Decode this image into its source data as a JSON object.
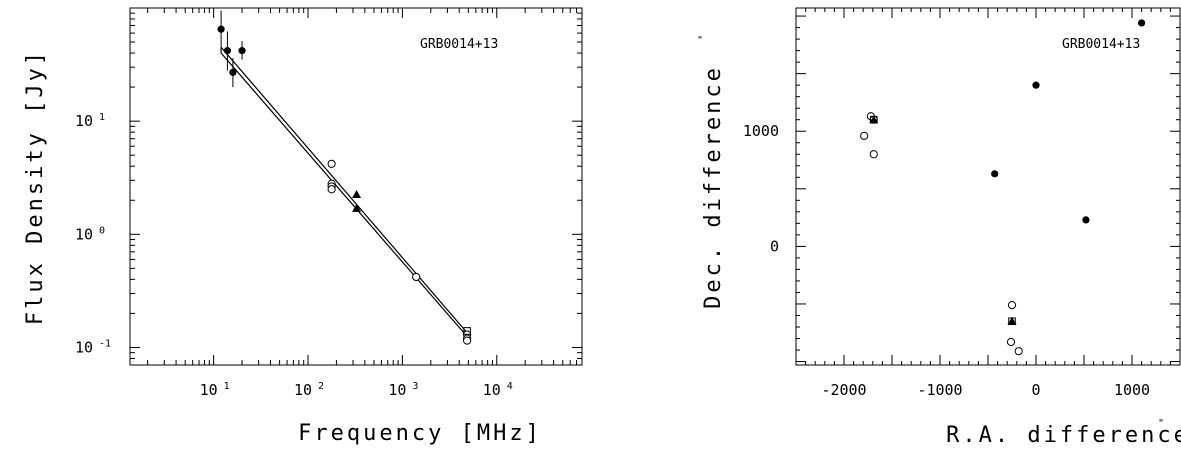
{
  "chart_data": [
    {
      "type": "scatter",
      "annotation": "GRB0014+13",
      "xlabel": "Frequency [MHz]",
      "ylabel": "Flux Density [Jy]",
      "xscale": "log",
      "yscale": "log",
      "xlim": [
        1.3,
        80000
      ],
      "ylim": [
        0.07,
        100
      ],
      "xticks": [
        {
          "value": 10,
          "base": "10",
          "exp": "1"
        },
        {
          "value": 100,
          "base": "10",
          "exp": "2"
        },
        {
          "value": 1000,
          "base": "10",
          "exp": "3"
        },
        {
          "value": 10000,
          "base": "10",
          "exp": "4"
        }
      ],
      "yticks": [
        {
          "value": 0.1,
          "base": "10",
          "exp": "-1"
        },
        {
          "value": 1,
          "base": "10",
          "exp": "0"
        },
        {
          "value": 10,
          "base": "10",
          "exp": "1"
        }
      ],
      "series": [
        {
          "marker": "filled-circle",
          "points": [
            {
              "x": 12,
              "y": 65,
              "err": [
                45,
                95
              ]
            },
            {
              "x": 14,
              "y": 42,
              "err": [
                28,
                62
              ]
            },
            {
              "x": 16,
              "y": 27,
              "err": [
                20,
                36
              ]
            },
            {
              "x": 20,
              "y": 42,
              "err": [
                35,
                51
              ]
            }
          ]
        },
        {
          "marker": "open-circle",
          "points": [
            {
              "x": 178,
              "y": 4.2
            },
            {
              "x": 178,
              "y": 2.8
            },
            {
              "x": 178,
              "y": 2.65
            },
            {
              "x": 178,
              "y": 2.5
            },
            {
              "x": 1400,
              "y": 0.42
            },
            {
              "x": 4850,
              "y": 0.13
            },
            {
              "x": 4850,
              "y": 0.12
            },
            {
              "x": 4850,
              "y": 0.115
            }
          ]
        },
        {
          "marker": "filled-triangle",
          "points": [
            {
              "x": 327,
              "y": 2.25
            },
            {
              "x": 327,
              "y": 1.7
            }
          ]
        },
        {
          "marker": "open-square",
          "points": [
            {
              "x": 4850,
              "y": 0.14
            }
          ]
        }
      ],
      "fit_lines": [
        {
          "from": [
            12,
            45
          ],
          "to": [
            4850,
            0.135
          ]
        },
        {
          "from": [
            12,
            40
          ],
          "to": [
            4850,
            0.125
          ]
        }
      ],
      "fit_step": {
        "x": 12,
        "y": [
          45,
          40
        ]
      }
    },
    {
      "type": "scatter",
      "annotation": "GRB0014+13",
      "xlabel": "R.A. difference",
      "ylabel": "Dec. difference",
      "unit_mark": "\"",
      "xlim": [
        -2500,
        1500
      ],
      "ylim": [
        -1030,
        2070
      ],
      "xticks": [
        -2000,
        -1000,
        0,
        1000
      ],
      "yticks": [
        0,
        1000
      ],
      "series": [
        {
          "marker": "filled-circle",
          "points": [
            {
              "x": 1100,
              "y": 1940
            },
            {
              "x": 0,
              "y": 1400
            },
            {
              "x": -430,
              "y": 630
            },
            {
              "x": 520,
              "y": 230
            }
          ]
        },
        {
          "marker": "open-circle",
          "points": [
            {
              "x": -1720,
              "y": 1130
            },
            {
              "x": -1690,
              "y": 1100
            },
            {
              "x": -1790,
              "y": 960
            },
            {
              "x": -1690,
              "y": 800
            },
            {
              "x": -250,
              "y": -510
            },
            {
              "x": -260,
              "y": -830
            },
            {
              "x": -180,
              "y": -910
            }
          ]
        },
        {
          "marker": "filled-triangle",
          "points": [
            {
              "x": -1690,
              "y": 1100
            },
            {
              "x": -250,
              "y": -650
            }
          ]
        },
        {
          "marker": "open-square",
          "points": [
            {
              "x": -1690,
              "y": 1100
            },
            {
              "x": -250,
              "y": -650
            }
          ]
        }
      ]
    }
  ]
}
